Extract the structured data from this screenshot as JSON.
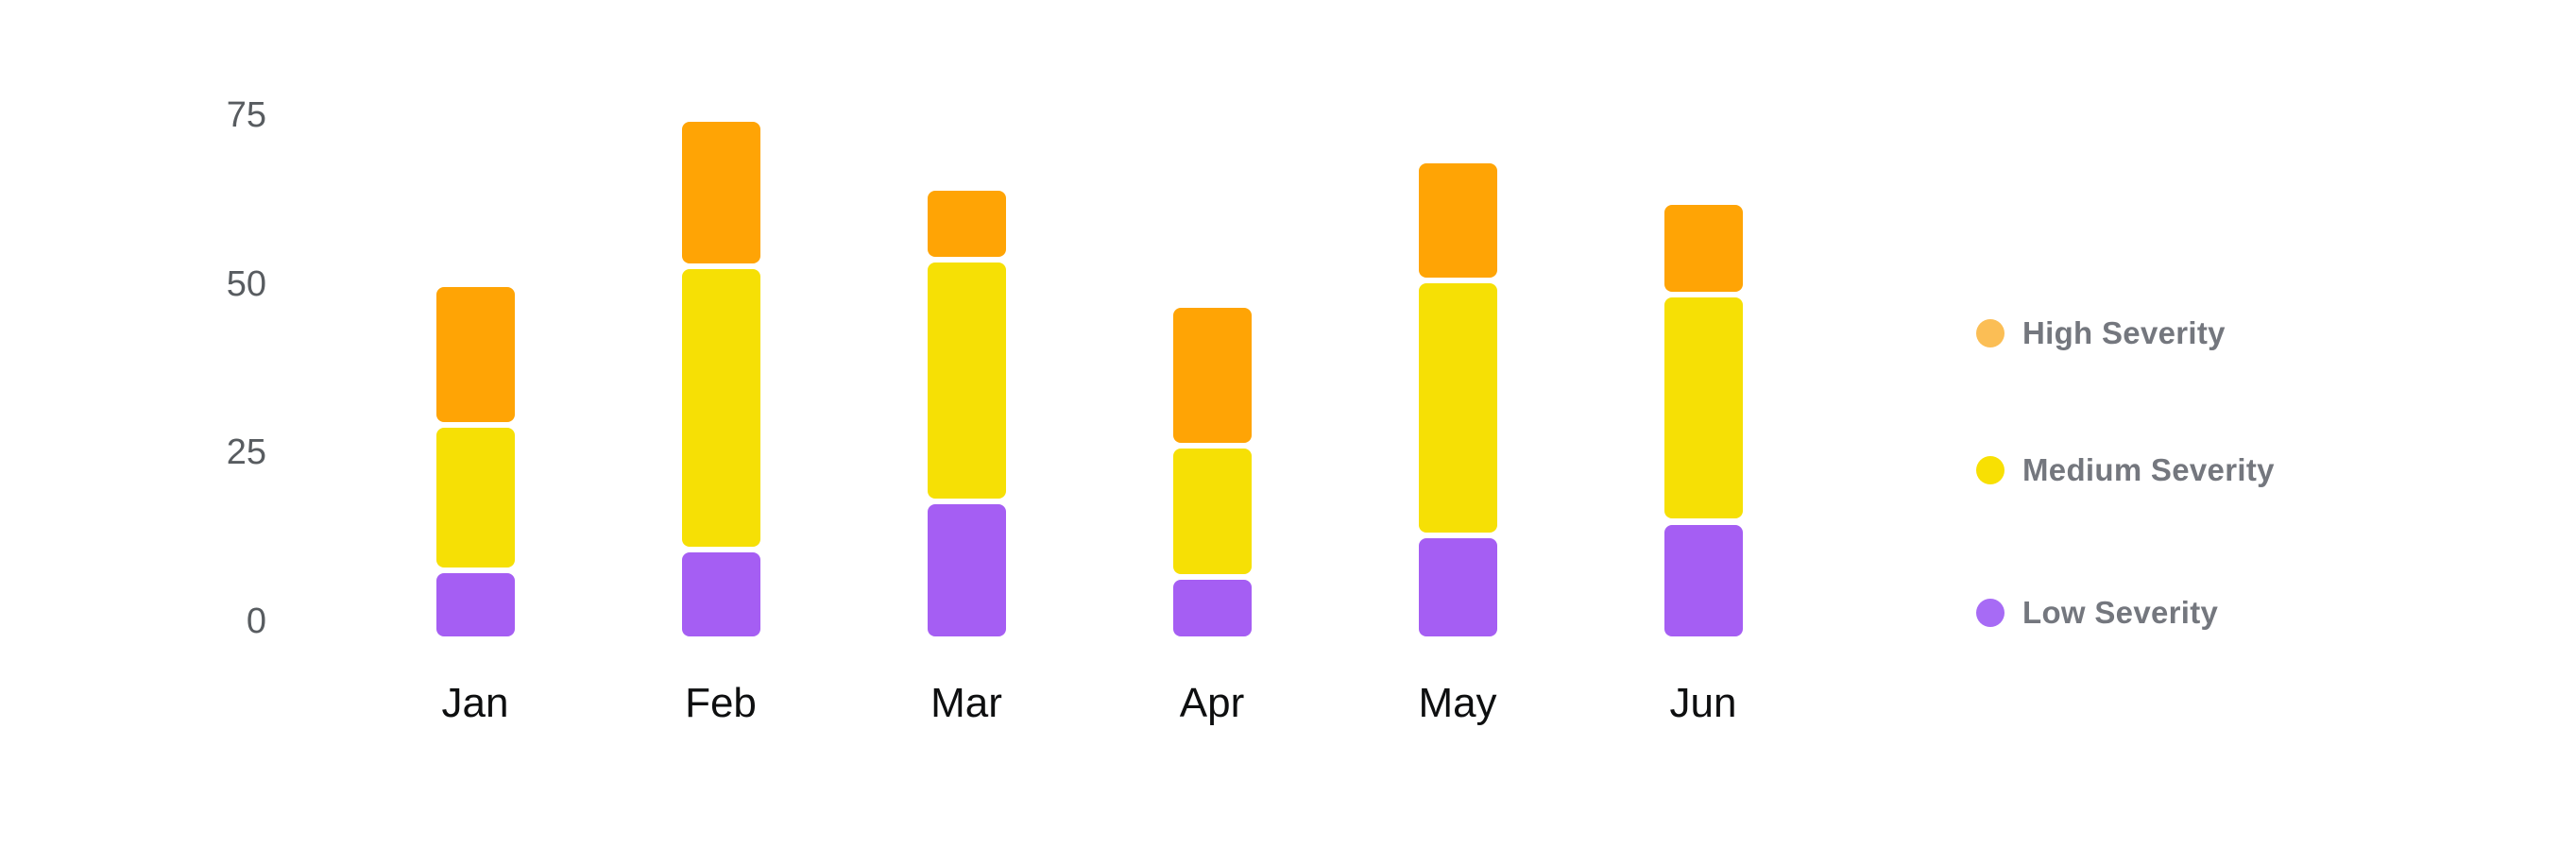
{
  "chart_data": {
    "type": "bar",
    "stacked": true,
    "title": "",
    "categories": [
      "Jan",
      "Feb",
      "Mar",
      "Apr",
      "May",
      "Jun"
    ],
    "series": [
      {
        "name": "Low Severity",
        "color": "#A55EF3",
        "values": [
          8,
          11,
          18,
          7,
          13,
          15
        ]
      },
      {
        "name": "Medium Severity",
        "color": "#F6E005",
        "values": [
          21,
          41,
          35,
          19,
          37,
          33
        ]
      },
      {
        "name": "High Severity",
        "color": "#FFA405",
        "values": [
          20,
          21,
          10,
          20,
          17,
          13
        ]
      }
    ],
    "totals": [
      49,
      73,
      63,
      46,
      67,
      61
    ],
    "xlabel": "",
    "ylabel": "",
    "yticks": [
      0,
      25,
      50,
      75
    ],
    "ylim": [
      0,
      75
    ],
    "grid": false,
    "legend_position": "right",
    "background": "#FFFFFF"
  },
  "axis": {
    "y_tick_labels": [
      "0",
      "25",
      "50",
      "75"
    ],
    "x_labels": [
      "Jan",
      "Feb",
      "Mar",
      "Apr",
      "May",
      "Jun"
    ],
    "y_tick_color": "#585C60",
    "x_label_color": "#0E0F10"
  },
  "legend": {
    "items": [
      {
        "label": "High Severity",
        "dot_color": "#FBBE55"
      },
      {
        "label": "Medium Severity",
        "dot_color": "#F8E003"
      },
      {
        "label": "Low Severity",
        "dot_color": "#A76BF5"
      }
    ],
    "text_color": "#74777E"
  }
}
